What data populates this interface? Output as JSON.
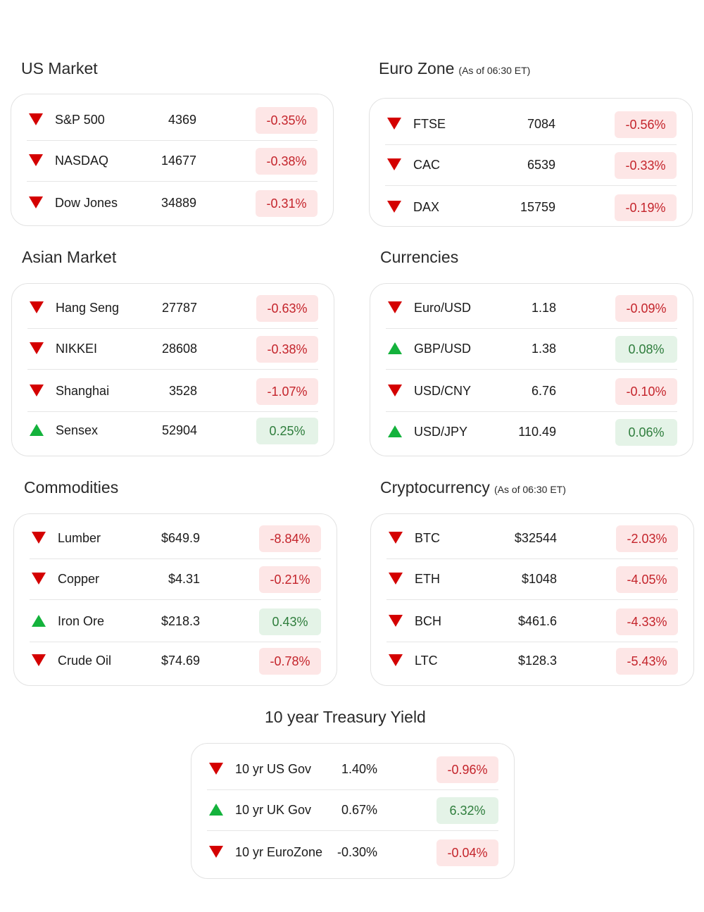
{
  "panels": [
    {
      "title": "US Market",
      "rows": [
        {
          "name": "S&P 500",
          "value": "4369",
          "change": "-0.35%"
        },
        {
          "name": "NASDAQ",
          "value": "14677",
          "change": "-0.38%"
        },
        {
          "name": "Dow Jones",
          "value": "34889",
          "change": "-0.31%"
        }
      ]
    },
    {
      "title": "Euro Zone",
      "note": "(As of 06:30 ET)",
      "rows": [
        {
          "name": "FTSE",
          "value": "7084",
          "change": "-0.56%"
        },
        {
          "name": "CAC",
          "value": "6539",
          "change": "-0.33%"
        },
        {
          "name": "DAX",
          "value": "15759",
          "change": "-0.19%"
        }
      ]
    },
    {
      "title": "Asian Market",
      "rows": [
        {
          "name": "Hang Seng",
          "value": "27787",
          "change": "-0.63%"
        },
        {
          "name": "NIKKEI",
          "value": "28608",
          "change": "-0.38%"
        },
        {
          "name": "Shanghai",
          "value": "3528",
          "change": "-1.07%"
        },
        {
          "name": "Sensex",
          "value": "52904",
          "change": "0.25%"
        }
      ]
    },
    {
      "title": "Currencies",
      "rows": [
        {
          "name": "Euro/USD",
          "value": "1.18",
          "change": "-0.09%"
        },
        {
          "name": "GBP/USD",
          "value": "1.38",
          "change": "0.08%"
        },
        {
          "name": "USD/CNY",
          "value": "6.76",
          "change": "-0.10%"
        },
        {
          "name": "USD/JPY",
          "value": "110.49",
          "change": "0.06%"
        }
      ]
    },
    {
      "title": "Commodities",
      "rows": [
        {
          "name": "Lumber",
          "value": "$649.9",
          "change": "-8.84%"
        },
        {
          "name": "Copper",
          "value": "$4.31",
          "change": "-0.21%"
        },
        {
          "name": "Iron Ore",
          "value": "$218.3",
          "change": "0.43%"
        },
        {
          "name": "Crude Oil",
          "value": "$74.69",
          "change": "-0.78%"
        }
      ]
    },
    {
      "title": "Cryptocurrency",
      "note": "(As of 06:30 ET)",
      "rows": [
        {
          "name": "BTC",
          "value": "$32544",
          "change": "-2.03%"
        },
        {
          "name": "ETH",
          "value": "$1048",
          "change": "-4.05%"
        },
        {
          "name": "BCH",
          "value": "$461.6",
          "change": "-4.33%"
        },
        {
          "name": "LTC",
          "value": "$128.3",
          "change": "-5.43%"
        }
      ]
    },
    {
      "title": "10 year Treasury Yield",
      "rows": [
        {
          "name": "10 yr US Gov",
          "value": "1.40%",
          "change": "-0.96%"
        },
        {
          "name": "10 yr UK Gov",
          "value": "0.67%",
          "change": "6.32%"
        },
        {
          "name": "10 yr EuroZone",
          "value": "-0.30%",
          "change": "-0.04%"
        }
      ]
    }
  ]
}
